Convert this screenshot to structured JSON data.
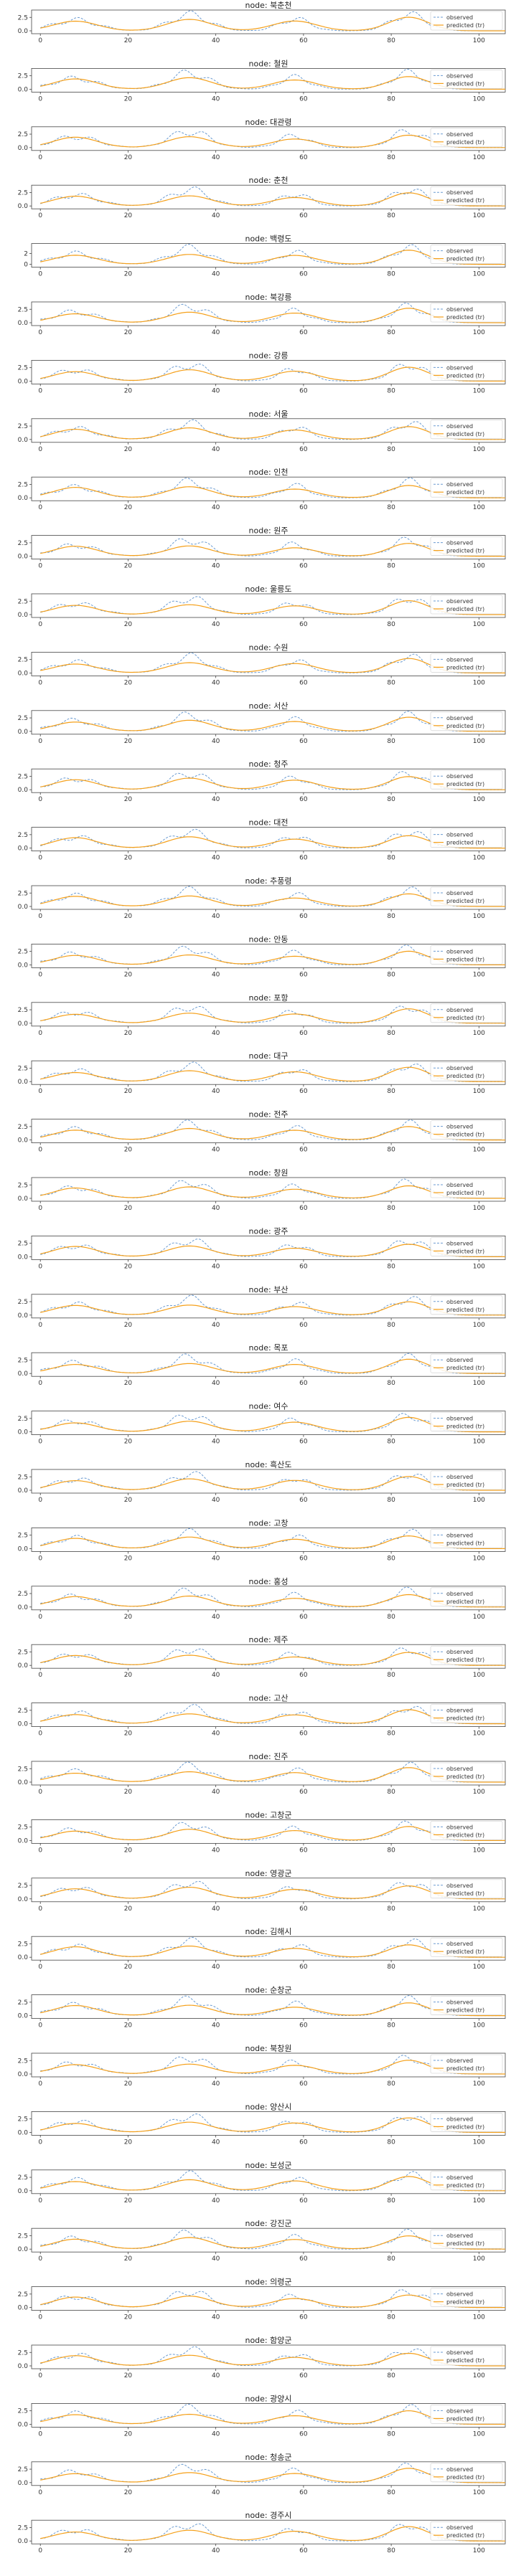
{
  "figure": {
    "legend": {
      "observed_label": "observed",
      "predicted_label": "predicted (tr)"
    },
    "colors": {
      "observed": "#6b9bd1",
      "predicted": "#f5a01a",
      "axes": "#444444",
      "legend_border": "#cccccc"
    },
    "xticks": [
      "0",
      "20",
      "40",
      "60",
      "80",
      "100"
    ],
    "yticks_default": [
      "0.0",
      "2.5"
    ]
  },
  "chart_data": [
    {
      "type": "line",
      "title": "node: 북춘천"
    },
    {
      "type": "line",
      "title": "node: 철원"
    },
    {
      "type": "line",
      "title": "node: 대관령"
    },
    {
      "type": "line",
      "title": "node: 춘천"
    },
    {
      "type": "line",
      "title": "node: 백령도",
      "yticks": [
        "0",
        "2"
      ]
    },
    {
      "type": "line",
      "title": "node: 북강릉"
    },
    {
      "type": "line",
      "title": "node: 강릉"
    },
    {
      "type": "line",
      "title": "node: 서울"
    },
    {
      "type": "line",
      "title": "node: 인천"
    },
    {
      "type": "line",
      "title": "node: 원주"
    },
    {
      "type": "line",
      "title": "node: 울릉도"
    },
    {
      "type": "line",
      "title": "node: 수원"
    },
    {
      "type": "line",
      "title": "node: 서산"
    },
    {
      "type": "line",
      "title": "node: 청주"
    },
    {
      "type": "line",
      "title": "node: 대전"
    },
    {
      "type": "line",
      "title": "node: 추풍령"
    },
    {
      "type": "line",
      "title": "node: 안동"
    },
    {
      "type": "line",
      "title": "node: 포항"
    },
    {
      "type": "line",
      "title": "node: 대구"
    },
    {
      "type": "line",
      "title": "node: 전주"
    },
    {
      "type": "line",
      "title": "node: 창원"
    },
    {
      "type": "line",
      "title": "node: 광주"
    },
    {
      "type": "line",
      "title": "node: 부산"
    },
    {
      "type": "line",
      "title": "node: 목포"
    },
    {
      "type": "line",
      "title": "node: 여수"
    },
    {
      "type": "line",
      "title": "node: 흑산도"
    },
    {
      "type": "line",
      "title": "node: 고창"
    },
    {
      "type": "line",
      "title": "node: 홍성"
    },
    {
      "type": "line",
      "title": "node: 제주"
    },
    {
      "type": "line",
      "title": "node: 고산"
    },
    {
      "type": "line",
      "title": "node: 진주"
    },
    {
      "type": "line",
      "title": "node: 고창군"
    },
    {
      "type": "line",
      "title": "node: 영광군"
    },
    {
      "type": "line",
      "title": "node: 김해시"
    },
    {
      "type": "line",
      "title": "node: 순창군"
    },
    {
      "type": "line",
      "title": "node: 북창원"
    },
    {
      "type": "line",
      "title": "node: 양산시"
    },
    {
      "type": "line",
      "title": "node: 보성군"
    },
    {
      "type": "line",
      "title": "node: 강진군"
    },
    {
      "type": "line",
      "title": "node: 의령군"
    },
    {
      "type": "line",
      "title": "node: 함양군"
    },
    {
      "type": "line",
      "title": "node: 광양시"
    },
    {
      "type": "line",
      "title": "node: 청송군"
    },
    {
      "type": "line",
      "title": "node: 경주시"
    }
  ]
}
